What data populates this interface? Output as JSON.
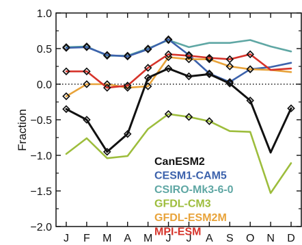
{
  "chart_data": {
    "type": "line",
    "ylabel": "Fraction",
    "xlabel": "",
    "title": "",
    "categories": [
      "J",
      "F",
      "M",
      "A",
      "M",
      "J",
      "J",
      "A",
      "S",
      "O",
      "N",
      "D"
    ],
    "ylim": [
      -2.0,
      1.0
    ],
    "yticks": [
      1.0,
      0.5,
      0.0,
      -0.5,
      -1.0,
      -1.5,
      -2.0
    ],
    "ytick_labels": [
      "1.0",
      "0.5",
      "0.0",
      "−0.5",
      "−1.0",
      "−1.5",
      "−2.0"
    ],
    "zero_line": "dotted",
    "grid": false,
    "legend_position": "bottom-right",
    "series": [
      {
        "name": "GFDL-CM3",
        "color": "#9dbd3c",
        "markers": [
          5,
          6,
          7
        ],
        "values": [
          -0.98,
          -0.76,
          -1.04,
          -1.01,
          -0.63,
          -0.42,
          -0.46,
          -0.52,
          -0.66,
          -0.67,
          -1.53,
          -1.11
        ]
      },
      {
        "name": "CSIRO-Mk3-6-0",
        "color": "#5fa7a4",
        "markers": [
          0,
          1,
          2,
          3,
          4,
          5
        ],
        "values": [
          0.52,
          0.53,
          0.4,
          0.4,
          0.5,
          0.62,
          0.52,
          0.58,
          0.58,
          0.62,
          0.53,
          0.46
        ]
      },
      {
        "name": "CESM1-CAM5",
        "color": "#3c62ac",
        "markers": [
          0,
          1,
          2,
          3,
          4,
          5,
          6,
          7,
          8,
          9
        ],
        "values": [
          0.51,
          0.52,
          0.41,
          0.39,
          0.49,
          0.63,
          0.41,
          0.15,
          0.03,
          0.21,
          0.24,
          0.3
        ]
      },
      {
        "name": "GFDL-ESM2M",
        "color": "#e8a33a",
        "markers": [
          0,
          1,
          2,
          3,
          4,
          5,
          6,
          7,
          8,
          9
        ],
        "values": [
          -0.17,
          0.0,
          0.0,
          -0.05,
          -0.03,
          0.38,
          0.35,
          0.35,
          0.25,
          0.21,
          0.2,
          0.17
        ]
      },
      {
        "name": "MPI-ESM",
        "color": "#d6332a",
        "markers": [
          0,
          1,
          2,
          3,
          4,
          5,
          6,
          7,
          8,
          9
        ],
        "values": [
          0.18,
          0.18,
          -0.05,
          -0.02,
          0.23,
          0.42,
          0.4,
          0.37,
          0.35,
          0.42,
          0.2,
          0.22
        ]
      },
      {
        "name": "CanESM2",
        "color": "#111111",
        "markers": [
          0,
          1,
          2,
          3,
          4,
          5,
          6,
          7,
          8,
          9,
          11
        ],
        "values": [
          -0.35,
          -0.5,
          -0.95,
          -0.7,
          0.09,
          0.22,
          0.11,
          0.14,
          0.01,
          -0.23,
          -0.96,
          -0.34
        ]
      }
    ],
    "legend": [
      {
        "label": "CanESM2",
        "color": "#111111"
      },
      {
        "label": "CESM1-CAM5",
        "color": "#3c62ac"
      },
      {
        "label": "CSIRO-Mk3-6-0",
        "color": "#5fa7a4"
      },
      {
        "label": "GFDL-CM3",
        "color": "#9dbd3c"
      },
      {
        "label": "GFDL-ESM2M",
        "color": "#e8a33a"
      },
      {
        "label": "MPI-ESM",
        "color": "#d6332a"
      }
    ]
  }
}
